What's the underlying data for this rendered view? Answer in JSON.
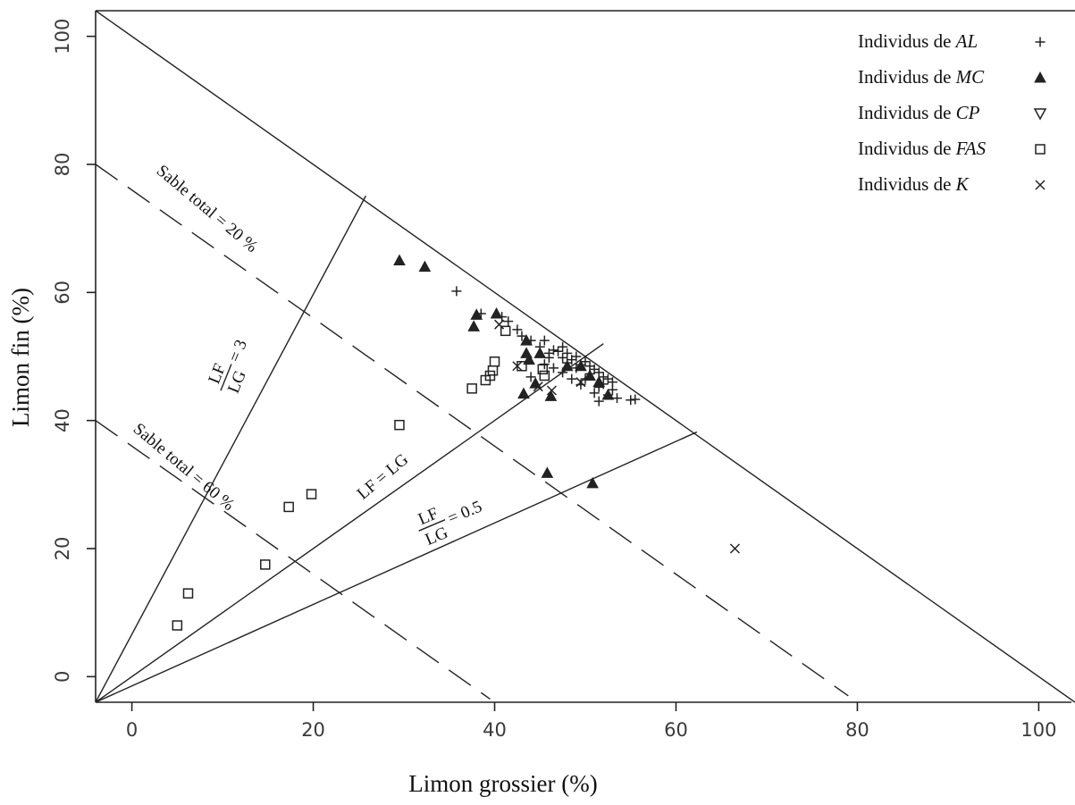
{
  "chart_data": {
    "type": "scatter",
    "title": "",
    "xlabel": "Limon grossier (%)",
    "ylabel": "Limon fin (%)",
    "xlim": [
      -4,
      104
    ],
    "ylim": [
      -4,
      104
    ],
    "xticks": [
      "0",
      "20",
      "40",
      "60",
      "80",
      "100"
    ],
    "yticks": [
      "0",
      "20",
      "40",
      "60",
      "80",
      "100"
    ],
    "grid": false,
    "legend_position": "top-right",
    "lines": [
      {
        "kind": "solid",
        "label_text": "LF/LG = 3",
        "from": [
          -4,
          -4
        ],
        "to": [
          25.8,
          75.1
        ]
      },
      {
        "kind": "solid",
        "label_text": "LF = LG",
        "from": [
          -4,
          -4
        ],
        "to": [
          52,
          52
        ]
      },
      {
        "kind": "solid",
        "label_text": "LF/LG = 0.5",
        "from": [
          -4,
          -4
        ],
        "to": [
          62.3,
          38.2
        ]
      },
      {
        "kind": "solid",
        "label_text": "",
        "from": [
          -4,
          104
        ],
        "to": [
          104,
          -4
        ]
      },
      {
        "kind": "dashed",
        "label_text": "Sable total = 20 %",
        "from": [
          -4,
          80
        ],
        "to": [
          79,
          -3
        ]
      },
      {
        "kind": "dashed",
        "label_text": "Sable total = 60 %",
        "from": [
          -4,
          40
        ],
        "to": [
          39.5,
          -3.5
        ]
      }
    ],
    "annotations": {
      "sable20": "Sable total = 20 %",
      "sable60": "Sable total = 60 %",
      "lf_eq_lg": "LF = LG",
      "ratio3": {
        "num": "LF",
        "den": "LG",
        "value": "= 3"
      },
      "ratio05": {
        "num": "LF",
        "den": "LG",
        "value": "= 0.5"
      }
    },
    "series": [
      {
        "name": "Individus de AL",
        "label_plain": "Individus de ",
        "label_italic": "AL",
        "marker": "plus",
        "points": [
          [
            35.8,
            60.2
          ],
          [
            38.5,
            56.7
          ],
          [
            40.8,
            56.2
          ],
          [
            41.5,
            55.5
          ],
          [
            42.5,
            54.2
          ],
          [
            43,
            53.2
          ],
          [
            44,
            52.5
          ],
          [
            45,
            51.5
          ],
          [
            45.5,
            52.5
          ],
          [
            46,
            50.5
          ],
          [
            46.5,
            51
          ],
          [
            47,
            50.8
          ],
          [
            47.5,
            51.5
          ],
          [
            47.5,
            49.8
          ],
          [
            48,
            50.5
          ],
          [
            48,
            49
          ],
          [
            48.5,
            49.5
          ],
          [
            49,
            50
          ],
          [
            49,
            48.2
          ],
          [
            49.5,
            48.7
          ],
          [
            50,
            49.2
          ],
          [
            50.5,
            48.5
          ],
          [
            50.5,
            47.3
          ],
          [
            51,
            48
          ],
          [
            51.5,
            47.5
          ],
          [
            52,
            46.8
          ],
          [
            52,
            45.7
          ],
          [
            52.5,
            46.5
          ],
          [
            53,
            46
          ],
          [
            53,
            44.8
          ],
          [
            51.5,
            45.2
          ],
          [
            50,
            46.5
          ],
          [
            49.5,
            45.6
          ],
          [
            48.5,
            46.5
          ],
          [
            47.5,
            47.5
          ],
          [
            46.5,
            48.2
          ],
          [
            45.5,
            48.8
          ],
          [
            51,
            44.3
          ],
          [
            52.5,
            44
          ],
          [
            53.5,
            43.5
          ],
          [
            51.5,
            43
          ],
          [
            55,
            43.2
          ],
          [
            55.5,
            43.3
          ],
          [
            44,
            46.8
          ],
          [
            46,
            49.8
          ]
        ]
      },
      {
        "name": "Individus de MC",
        "label_plain": "Individus de ",
        "label_italic": "MC",
        "marker": "triangle-filled",
        "points": [
          [
            29.5,
            65
          ],
          [
            32.3,
            64
          ],
          [
            37.7,
            54.7
          ],
          [
            38,
            56.5
          ],
          [
            40.2,
            56.7
          ],
          [
            43.5,
            52.5
          ],
          [
            43.5,
            50.5
          ],
          [
            45,
            50.5
          ],
          [
            43.8,
            49.5
          ],
          [
            44.5,
            45.8
          ],
          [
            43.2,
            44.2
          ],
          [
            46.2,
            43.8
          ],
          [
            48,
            48.5
          ],
          [
            49.5,
            48.5
          ],
          [
            50.5,
            47
          ],
          [
            51.5,
            46
          ],
          [
            52.5,
            44
          ],
          [
            45.8,
            31.8
          ],
          [
            50.8,
            30.2
          ]
        ]
      },
      {
        "name": "Individus de CP",
        "label_plain": "Individus de ",
        "label_italic": "CP",
        "marker": "triangle-open",
        "points": []
      },
      {
        "name": "Individus de FAS",
        "label_plain": "Individus de ",
        "label_italic": "FAS",
        "marker": "square-open",
        "points": [
          [
            5,
            8
          ],
          [
            6.2,
            13
          ],
          [
            14.7,
            17.5
          ],
          [
            17.3,
            26.5
          ],
          [
            19.8,
            28.5
          ],
          [
            29.5,
            39.3
          ],
          [
            37.5,
            45
          ],
          [
            39,
            46.3
          ],
          [
            39.5,
            47
          ],
          [
            39.8,
            47.8
          ],
          [
            40,
            49.2
          ],
          [
            41.2,
            54
          ],
          [
            43,
            48.5
          ],
          [
            45.3,
            48
          ],
          [
            45.5,
            47
          ]
        ]
      },
      {
        "name": "Individus de K",
        "label_plain": "Individus de ",
        "label_italic": "K",
        "marker": "cross",
        "points": [
          [
            40.5,
            55
          ],
          [
            42.5,
            48.5
          ],
          [
            44.8,
            45.3
          ],
          [
            46.3,
            44.7
          ],
          [
            49.5,
            46
          ],
          [
            66.5,
            20
          ]
        ]
      }
    ]
  }
}
